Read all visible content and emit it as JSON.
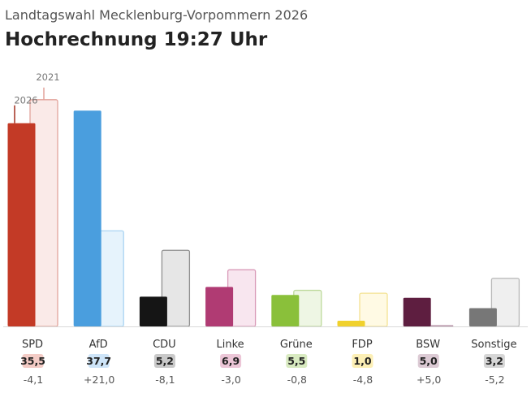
{
  "header": {
    "supertitle": "Landtagswahl Mecklenburg-Vorpommern 2026",
    "title": "Hochrechnung 19:27 Uhr"
  },
  "chart_data": {
    "type": "bar",
    "legend": {
      "current": "2026",
      "previous": "2021"
    },
    "categories": [
      "SPD",
      "AfD",
      "CDU",
      "Linke",
      "Grüne",
      "FDP",
      "BSW",
      "Sonstige"
    ],
    "series": [
      {
        "name": "2026",
        "values": [
          35.5,
          37.7,
          5.2,
          6.9,
          5.5,
          1.0,
          5.0,
          3.2
        ]
      },
      {
        "name": "2021",
        "values": [
          39.6,
          16.7,
          13.3,
          9.9,
          6.3,
          5.8,
          0.0,
          8.4
        ]
      }
    ],
    "value_labels": [
      "35,5",
      "37,7",
      "5,2",
      "6,9",
      "5,5",
      "1,0",
      "5,0",
      "3,2"
    ],
    "diff_labels": [
      "-4,1",
      "+21,0",
      "-8,1",
      "-3,0",
      "-0,8",
      "-4,8",
      "+5,0",
      "-5,2"
    ],
    "colors": [
      "#c33a26",
      "#4a9ede",
      "#151515",
      "#b03b73",
      "#8ac03a",
      "#f0d12d",
      "#5e1e40",
      "#777777"
    ],
    "prev_fill": [
      "#faeae8",
      "#e6f3fc",
      "#e6e6e6",
      "#f8e6ef",
      "#eef6e4",
      "#fffae4",
      "#f1e8ed",
      "#efefef"
    ],
    "prev_stroke": [
      "#e2a39b",
      "#aad4f2",
      "#8f8f8f",
      "#d99ab8",
      "#bdd99b",
      "#f3e291",
      "#b590a5",
      "#b8b8b8"
    ],
    "badge_bg": [
      "#f3cbc5",
      "#cde4f8",
      "#c9c9c9",
      "#ecc6d7",
      "#d8eac0",
      "#fcefb5",
      "#dccad4",
      "#d6d6d6"
    ],
    "ylim": [
      0,
      40
    ]
  }
}
